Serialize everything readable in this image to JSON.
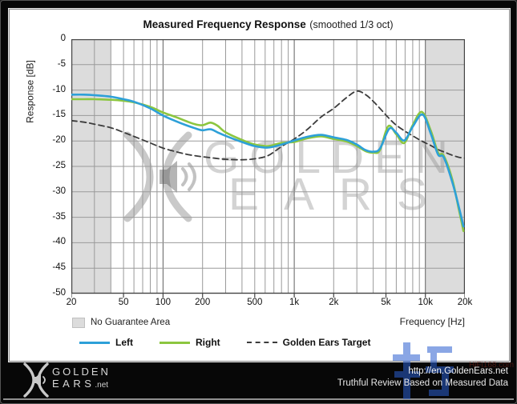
{
  "title": {
    "main": "Measured Frequency Response",
    "sub": "(smoothed  1/3 oct)"
  },
  "chart": {
    "y_axis_label": "Response [dB]",
    "x_axis_label": "Frequency [Hz]",
    "no_guarantee_label": "No Guarantee Area",
    "watermark_line1": "GOLDEN",
    "watermark_line2": "EARS",
    "band_color": "#dcdcdc",
    "grid_color": "#9a9a9a",
    "decade_grid_color": "#606060",
    "frame_color": "#444444"
  },
  "legend": [
    {
      "label": "Left",
      "color": "#2da0d8",
      "style": "solid"
    },
    {
      "label": "Right",
      "color": "#8cc63f",
      "style": "solid"
    },
    {
      "label": "Golden Ears Target",
      "color": "#3c3c3c",
      "style": "dashed"
    }
  ],
  "footer": {
    "logo_line1": "GOLDEN",
    "logo_line2": "EARS",
    "logo_suffix": ".net",
    "url": "http://en.GoldenEars.net",
    "tagline": "Truthful Review Based on Measured Data",
    "stamp_text": "HiFi168.com"
  },
  "chart_data": {
    "type": "line",
    "x_scale": "log",
    "x_range": [
      20,
      20000
    ],
    "y_range": [
      -50,
      0
    ],
    "x_ticks": [
      "20",
      "50",
      "100",
      "200",
      "500",
      "1k",
      "2k",
      "5k",
      "10k",
      "20k"
    ],
    "x_tick_values": [
      20,
      50,
      100,
      200,
      500,
      1000,
      2000,
      5000,
      10000,
      20000
    ],
    "y_ticks": [
      0,
      -5,
      -10,
      -15,
      -20,
      -25,
      -30,
      -35,
      -40,
      -45,
      -50
    ],
    "no_guarantee_bands_hz": [
      [
        20,
        40
      ],
      [
        10000,
        20000
      ]
    ],
    "series": [
      {
        "name": "Golden Ears Target",
        "color": "#3c3c3c",
        "style": "dashed",
        "width": 1.8,
        "points": [
          [
            20,
            -16.0
          ],
          [
            25,
            -16.3
          ],
          [
            30,
            -16.7
          ],
          [
            40,
            -17.4
          ],
          [
            50,
            -18.3
          ],
          [
            60,
            -19.1
          ],
          [
            80,
            -20.4
          ],
          [
            100,
            -21.4
          ],
          [
            125,
            -22.1
          ],
          [
            150,
            -22.6
          ],
          [
            175,
            -22.9
          ],
          [
            200,
            -23.1
          ],
          [
            250,
            -23.4
          ],
          [
            300,
            -23.6
          ],
          [
            400,
            -23.7
          ],
          [
            500,
            -23.5
          ],
          [
            630,
            -22.9
          ],
          [
            800,
            -21.1
          ],
          [
            1000,
            -19.6
          ],
          [
            1250,
            -17.8
          ],
          [
            1600,
            -15.3
          ],
          [
            2000,
            -13.6
          ],
          [
            2500,
            -11.5
          ],
          [
            3000,
            -10.2
          ],
          [
            3500,
            -10.9
          ],
          [
            4000,
            -12.2
          ],
          [
            4500,
            -13.6
          ],
          [
            5300,
            -15.6
          ],
          [
            6000,
            -16.9
          ],
          [
            7000,
            -18.1
          ],
          [
            8000,
            -19.0
          ],
          [
            9500,
            -20.1
          ],
          [
            11000,
            -20.9
          ],
          [
            12500,
            -21.7
          ],
          [
            14000,
            -22.2
          ],
          [
            16000,
            -22.8
          ],
          [
            18000,
            -23.2
          ],
          [
            20000,
            -23.4
          ]
        ]
      },
      {
        "name": "Right",
        "color": "#8cc63f",
        "style": "solid",
        "width": 2.6,
        "points": [
          [
            20,
            -11.8
          ],
          [
            25,
            -11.8
          ],
          [
            30,
            -11.8
          ],
          [
            40,
            -11.9
          ],
          [
            50,
            -12.1
          ],
          [
            60,
            -12.4
          ],
          [
            80,
            -13.3
          ],
          [
            100,
            -14.4
          ],
          [
            125,
            -15.3
          ],
          [
            150,
            -16.1
          ],
          [
            175,
            -16.7
          ],
          [
            200,
            -16.9
          ],
          [
            230,
            -16.4
          ],
          [
            260,
            -17.0
          ],
          [
            300,
            -18.3
          ],
          [
            400,
            -19.8
          ],
          [
            500,
            -20.7
          ],
          [
            630,
            -21.0
          ],
          [
            800,
            -20.4
          ],
          [
            1000,
            -20.2
          ],
          [
            1250,
            -19.5
          ],
          [
            1600,
            -19.1
          ],
          [
            2000,
            -19.6
          ],
          [
            2500,
            -20.1
          ],
          [
            3000,
            -21.0
          ],
          [
            3500,
            -22.0
          ],
          [
            4000,
            -22.3
          ],
          [
            4500,
            -21.8
          ],
          [
            5200,
            -17.1
          ],
          [
            6000,
            -18.7
          ],
          [
            6900,
            -20.4
          ],
          [
            8000,
            -16.9
          ],
          [
            9400,
            -14.3
          ],
          [
            11000,
            -18.0
          ],
          [
            12500,
            -22.3
          ],
          [
            13800,
            -22.9
          ],
          [
            16000,
            -27.5
          ],
          [
            18000,
            -33.5
          ],
          [
            19500,
            -37.7
          ]
        ]
      },
      {
        "name": "Left",
        "color": "#2da0d8",
        "style": "solid",
        "width": 2.6,
        "points": [
          [
            20,
            -10.9
          ],
          [
            25,
            -10.9
          ],
          [
            30,
            -11.0
          ],
          [
            40,
            -11.3
          ],
          [
            50,
            -11.8
          ],
          [
            60,
            -12.3
          ],
          [
            80,
            -13.6
          ],
          [
            100,
            -15.0
          ],
          [
            125,
            -16.1
          ],
          [
            150,
            -16.9
          ],
          [
            175,
            -17.5
          ],
          [
            200,
            -17.9
          ],
          [
            230,
            -17.7
          ],
          [
            260,
            -18.3
          ],
          [
            300,
            -19.0
          ],
          [
            400,
            -20.2
          ],
          [
            500,
            -21.0
          ],
          [
            630,
            -21.3
          ],
          [
            800,
            -20.7
          ],
          [
            1000,
            -19.9
          ],
          [
            1250,
            -19.2
          ],
          [
            1600,
            -18.8
          ],
          [
            2000,
            -19.3
          ],
          [
            2500,
            -19.8
          ],
          [
            3000,
            -20.7
          ],
          [
            3500,
            -21.8
          ],
          [
            4000,
            -22.1
          ],
          [
            4500,
            -21.5
          ],
          [
            5300,
            -17.6
          ],
          [
            6000,
            -18.4
          ],
          [
            6900,
            -19.9
          ],
          [
            8000,
            -17.2
          ],
          [
            9500,
            -14.8
          ],
          [
            11000,
            -18.6
          ],
          [
            12500,
            -22.7
          ],
          [
            13800,
            -23.2
          ],
          [
            16000,
            -28.0
          ],
          [
            18000,
            -33.0
          ],
          [
            19500,
            -36.8
          ]
        ]
      }
    ]
  }
}
